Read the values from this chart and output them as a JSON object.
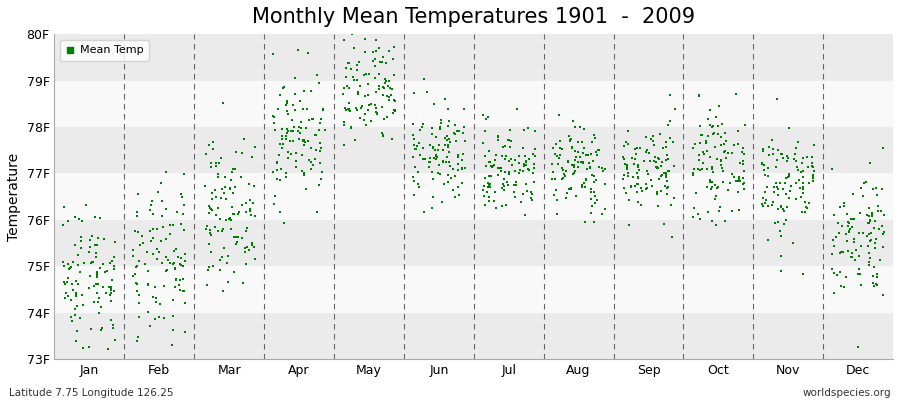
{
  "title": "Monthly Mean Temperatures 1901  -  2009",
  "ylabel": "Temperature",
  "xlabel_months": [
    "Jan",
    "Feb",
    "Mar",
    "Apr",
    "May",
    "Jun",
    "Jul",
    "Aug",
    "Sep",
    "Oct",
    "Nov",
    "Dec"
  ],
  "bottom_left_text": "Latitude 7.75 Longitude 126.25",
  "bottom_right_text": "worldspecies.org",
  "ylim": [
    73.0,
    80.0
  ],
  "yticks": [
    73,
    74,
    75,
    76,
    77,
    78,
    79,
    80
  ],
  "ytick_labels": [
    "73F",
    "74F",
    "75F",
    "76F",
    "77F",
    "78F",
    "79F",
    "80F"
  ],
  "marker_color": "#008000",
  "bg_color": "#f5f5f5",
  "band_colors": [
    "#ebebeb",
    "#f9f9f9"
  ],
  "title_fontsize": 15,
  "n_years": 109,
  "monthly_means": [
    74.8,
    75.0,
    76.2,
    77.8,
    78.7,
    77.4,
    77.1,
    77.1,
    77.1,
    77.2,
    76.8,
    75.7
  ],
  "monthly_stds": [
    0.8,
    0.85,
    0.75,
    0.7,
    0.65,
    0.55,
    0.5,
    0.5,
    0.5,
    0.55,
    0.65,
    0.7
  ],
  "seed": 42
}
